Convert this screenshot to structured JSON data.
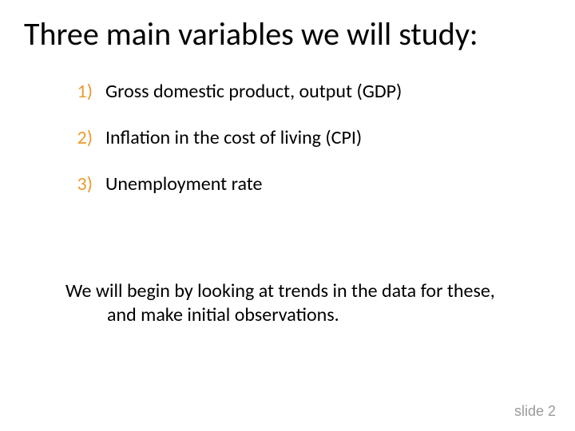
{
  "title": "Three main variables we will study:",
  "items": [
    {
      "num": "1)",
      "text": "Gross domestic product, output (GDP)"
    },
    {
      "num": "2)",
      "text": "Inflation in the cost of living (CPI)"
    },
    {
      "num": "3)",
      "text": "Unemployment rate"
    }
  ],
  "paragraph": "We will begin by looking at trends in the data for these, and make initial observations.",
  "footer": "slide 2",
  "style": {
    "background_color": "#ffffff",
    "title_fontsize": 40,
    "title_color": "#000000",
    "body_fontsize": 24,
    "number_color": "#ed9b33",
    "body_color": "#000000",
    "footer_color": "#9a9a9a",
    "footer_fontsize": 18,
    "font_family": "Calibri"
  }
}
